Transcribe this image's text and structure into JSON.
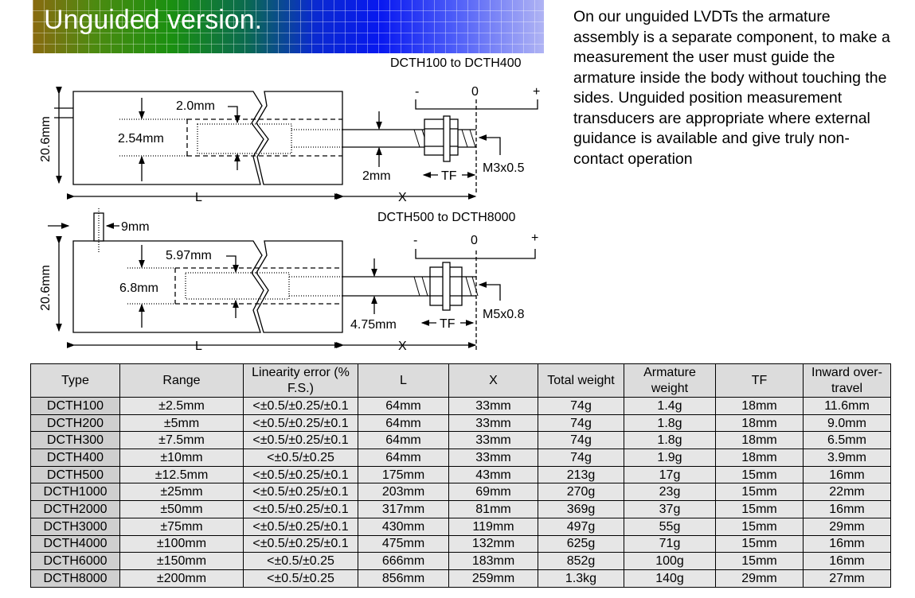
{
  "banner": {
    "title": "Unguided version."
  },
  "description": "On our unguided LVDTs the armature assembly is a separate component, to make a measurement the user must guide the armature inside the body without touching the sides. Unguided position measurement transducers are appropriate where external guidance is available and give truly non-contact operation",
  "diagram_small": {
    "title": "DCTH100 to DCTH400",
    "height": "20.6mm",
    "inner_gap": "2.0mm",
    "armature_dia": "2.54mm",
    "rod_dia": "2mm",
    "thread": "M3x0.5",
    "tf": "TF",
    "L": "L",
    "X": "X",
    "minus": "-",
    "zero": "0",
    "plus": "+"
  },
  "diagram_large": {
    "title": "DCTH500 to DCTH8000",
    "height": "20.6mm",
    "pin": "9mm",
    "inner_gap": "5.97mm",
    "armature_dia": "6.8mm",
    "rod_dia": "4.75mm",
    "thread": "M5x0.8",
    "tf": "TF",
    "L": "L",
    "X": "X",
    "minus": "-",
    "zero": "0",
    "plus": "+"
  },
  "table": {
    "headers": [
      "Type",
      "Range",
      "Linearity error (% F.S.)",
      "L",
      "X",
      "Total weight",
      "Armature weight",
      "TF",
      "Inward over-travel"
    ],
    "rows": [
      [
        "DCTH100",
        "±2.5mm",
        "<±0.5/±0.25/±0.1",
        "64mm",
        "33mm",
        "74g",
        "1.4g",
        "18mm",
        "11.6mm"
      ],
      [
        "DCTH200",
        "±5mm",
        "<±0.5/±0.25/±0.1",
        "64mm",
        "33mm",
        "74g",
        "1.8g",
        "18mm",
        "9.0mm"
      ],
      [
        "DCTH300",
        "±7.5mm",
        "<±0.5/±0.25/±0.1",
        "64mm",
        "33mm",
        "74g",
        "1.8g",
        "18mm",
        "6.5mm"
      ],
      [
        "DCTH400",
        "±10mm",
        "<±0.5/±0.25",
        "64mm",
        "33mm",
        "74g",
        "1.9g",
        "18mm",
        "3.9mm"
      ],
      [
        "DCTH500",
        "±12.5mm",
        "<±0.5/±0.25/±0.1",
        "175mm",
        "43mm",
        "213g",
        "17g",
        "15mm",
        "16mm"
      ],
      [
        "DCTH1000",
        "±25mm",
        "<±0.5/±0.25/±0.1",
        "203mm",
        "69mm",
        "270g",
        "23g",
        "15mm",
        "22mm"
      ],
      [
        "DCTH2000",
        "±50mm",
        "<±0.5/±0.25/±0.1",
        "317mm",
        "81mm",
        "369g",
        "37g",
        "15mm",
        "16mm"
      ],
      [
        "DCTH3000",
        "±75mm",
        "<±0.5/±0.25/±0.1",
        "430mm",
        "119mm",
        "497g",
        "55g",
        "15mm",
        "29mm"
      ],
      [
        "DCTH4000",
        "±100mm",
        "<±0.5/±0.25/±0.1",
        "475mm",
        "132mm",
        "625g",
        "71g",
        "15mm",
        "16mm"
      ],
      [
        "DCTH6000",
        "±150mm",
        "<±0.5/±0.25",
        "666mm",
        "183mm",
        "852g",
        "100g",
        "15mm",
        "16mm"
      ],
      [
        "DCTH8000",
        "±200mm",
        "<±0.5/±0.25",
        "856mm",
        "259mm",
        "1.3kg",
        "140g",
        "29mm",
        "27mm"
      ]
    ]
  }
}
